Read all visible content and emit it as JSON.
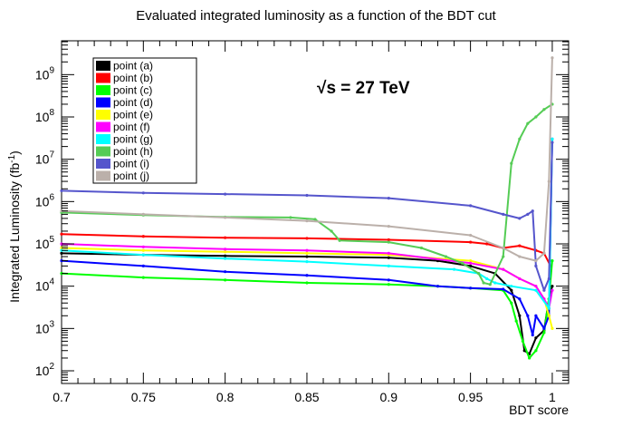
{
  "chart_data": {
    "type": "line",
    "title": "Evaluated integrated luminosity as a function of the BDT cut",
    "xlabel": "BDT score",
    "ylabel": "Integrated Luminosity (fb",
    "ylabel_unit_superscript": "-1",
    "ylabel_close": ")",
    "xlim": [
      0.7,
      1.01
    ],
    "ylim_log10": [
      1.7,
      9.8
    ],
    "yscale": "log",
    "x_ticks": [
      0.7,
      0.75,
      0.8,
      0.85,
      0.9,
      0.95,
      1
    ],
    "x_tick_labels": [
      "0.7",
      "0.75",
      "0.8",
      "0.85",
      "0.9",
      "0.95",
      "1"
    ],
    "y_ticks_exp": [
      2,
      3,
      4,
      5,
      6,
      7,
      8,
      9
    ],
    "y_tick_base": "10",
    "annotation": {
      "prefix": "√",
      "text": "s = 27 TeV"
    },
    "legend_position": "top-left",
    "series": [
      {
        "name": "point (a)",
        "color": "#000000",
        "points": [
          [
            0.7,
            60000
          ],
          [
            0.75,
            55000
          ],
          [
            0.8,
            52000
          ],
          [
            0.85,
            50000
          ],
          [
            0.9,
            47000
          ],
          [
            0.93,
            40000
          ],
          [
            0.95,
            30000
          ],
          [
            0.965,
            20000
          ],
          [
            0.975,
            8000
          ],
          [
            0.98,
            2000
          ],
          [
            0.983,
            300
          ],
          [
            0.986,
            250
          ],
          [
            0.99,
            600
          ],
          [
            0.995,
            900
          ],
          [
            0.998,
            5000
          ],
          [
            1.0,
            10000
          ]
        ]
      },
      {
        "name": "point (b)",
        "color": "#ff0000",
        "points": [
          [
            0.7,
            170000
          ],
          [
            0.75,
            150000
          ],
          [
            0.8,
            140000
          ],
          [
            0.85,
            135000
          ],
          [
            0.9,
            125000
          ],
          [
            0.95,
            110000
          ],
          [
            0.96,
            100000
          ],
          [
            0.97,
            80000
          ],
          [
            0.98,
            90000
          ],
          [
            0.99,
            70000
          ],
          [
            0.995,
            60000
          ],
          [
            0.999,
            30000
          ]
        ]
      },
      {
        "name": "point (c)",
        "color": "#00ff00",
        "points": [
          [
            0.7,
            20000
          ],
          [
            0.75,
            16000
          ],
          [
            0.8,
            14000
          ],
          [
            0.85,
            12000
          ],
          [
            0.9,
            11000
          ],
          [
            0.93,
            10000
          ],
          [
            0.95,
            9000
          ],
          [
            0.97,
            8000
          ],
          [
            0.975,
            4000
          ],
          [
            0.978,
            1500
          ],
          [
            0.982,
            500
          ],
          [
            0.986,
            200
          ],
          [
            0.99,
            300
          ],
          [
            0.995,
            800
          ],
          [
            0.998,
            5000
          ],
          [
            1.0,
            40000
          ]
        ]
      },
      {
        "name": "point (d)",
        "color": "#0000ff",
        "points": [
          [
            0.7,
            40000
          ],
          [
            0.75,
            30000
          ],
          [
            0.8,
            22000
          ],
          [
            0.85,
            18000
          ],
          [
            0.9,
            14000
          ],
          [
            0.93,
            10000
          ],
          [
            0.95,
            9000
          ],
          [
            0.97,
            8500
          ],
          [
            0.98,
            5000
          ],
          [
            0.985,
            2000
          ],
          [
            0.988,
            700
          ],
          [
            0.99,
            2000
          ],
          [
            0.995,
            1000
          ],
          [
            0.998,
            2000
          ],
          [
            1.0,
            30000000
          ]
        ]
      },
      {
        "name": "point (e)",
        "color": "#ffff00",
        "points": [
          [
            0.7,
            80000
          ],
          [
            0.75,
            70000
          ],
          [
            0.8,
            65000
          ],
          [
            0.85,
            60000
          ],
          [
            0.9,
            55000
          ],
          [
            0.95,
            40000
          ],
          [
            0.97,
            25000
          ],
          [
            0.98,
            15000
          ],
          [
            0.99,
            10000
          ],
          [
            0.995,
            5000
          ],
          [
            0.998,
            2000
          ],
          [
            1.0,
            1000
          ]
        ]
      },
      {
        "name": "point (f)",
        "color": "#ff00ff",
        "points": [
          [
            0.7,
            100000
          ],
          [
            0.75,
            85000
          ],
          [
            0.8,
            75000
          ],
          [
            0.85,
            70000
          ],
          [
            0.9,
            60000
          ],
          [
            0.95,
            35000
          ],
          [
            0.97,
            25000
          ],
          [
            0.98,
            15000
          ],
          [
            0.99,
            10000
          ],
          [
            0.995,
            5000
          ],
          [
            0.998,
            3000
          ],
          [
            1.0,
            8000
          ]
        ]
      },
      {
        "name": "point (g)",
        "color": "#00ffff",
        "points": [
          [
            0.7,
            70000
          ],
          [
            0.75,
            55000
          ],
          [
            0.8,
            45000
          ],
          [
            0.85,
            38000
          ],
          [
            0.9,
            30000
          ],
          [
            0.94,
            25000
          ],
          [
            0.955,
            20000
          ],
          [
            0.96,
            15000
          ],
          [
            0.965,
            12000
          ],
          [
            0.975,
            10000
          ],
          [
            0.99,
            8000
          ],
          [
            0.998,
            3000
          ],
          [
            1.0,
            30000000
          ]
        ]
      },
      {
        "name": "point (h)",
        "color": "#55cc55",
        "points": [
          [
            0.7,
            550000
          ],
          [
            0.75,
            480000
          ],
          [
            0.8,
            430000
          ],
          [
            0.84,
            420000
          ],
          [
            0.855,
            380000
          ],
          [
            0.865,
            200000
          ],
          [
            0.87,
            120000
          ],
          [
            0.9,
            110000
          ],
          [
            0.92,
            80000
          ],
          [
            0.935,
            50000
          ],
          [
            0.945,
            35000
          ],
          [
            0.955,
            20000
          ],
          [
            0.958,
            12000
          ],
          [
            0.962,
            11000
          ],
          [
            0.97,
            50000
          ],
          [
            0.975,
            8000000
          ],
          [
            0.98,
            30000000
          ],
          [
            0.985,
            70000000
          ],
          [
            0.99,
            100000000
          ],
          [
            0.995,
            150000000
          ],
          [
            1.0,
            200000000
          ]
        ]
      },
      {
        "name": "point (i)",
        "color": "#5555cc",
        "points": [
          [
            0.7,
            1800000
          ],
          [
            0.75,
            1600000
          ],
          [
            0.8,
            1500000
          ],
          [
            0.85,
            1400000
          ],
          [
            0.9,
            1200000
          ],
          [
            0.95,
            800000
          ],
          [
            0.97,
            500000
          ],
          [
            0.98,
            400000
          ],
          [
            0.985,
            500000
          ],
          [
            0.988,
            600000
          ],
          [
            0.99,
            30000
          ],
          [
            0.995,
            8000
          ],
          [
            0.998,
            15000
          ],
          [
            1.0,
            25000000
          ]
        ]
      },
      {
        "name": "point (j)",
        "color": "#bbb0aa",
        "points": [
          [
            0.7,
            600000
          ],
          [
            0.75,
            500000
          ],
          [
            0.8,
            420000
          ],
          [
            0.85,
            350000
          ],
          [
            0.9,
            260000
          ],
          [
            0.95,
            160000
          ],
          [
            0.97,
            80000
          ],
          [
            0.98,
            50000
          ],
          [
            0.99,
            40000
          ],
          [
            0.995,
            60000
          ],
          [
            0.998,
            3000000
          ],
          [
            1.0,
            2500000000
          ]
        ]
      }
    ]
  }
}
